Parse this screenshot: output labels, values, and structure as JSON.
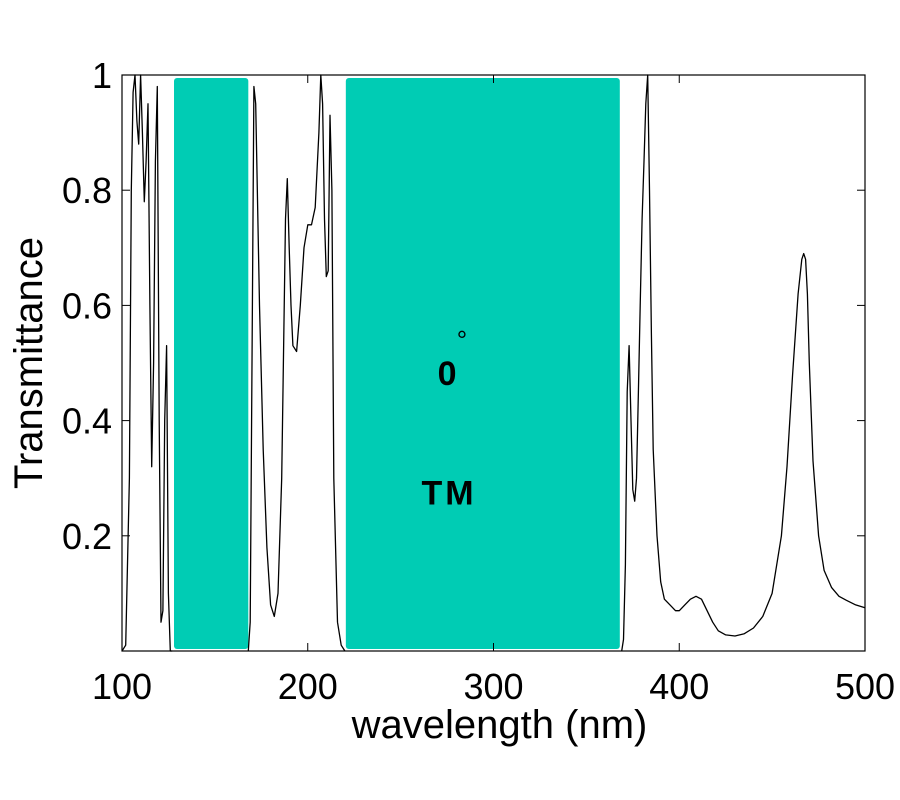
{
  "chart_data": {
    "type": "line",
    "title": "",
    "xlabel": "wavelength (nm)",
    "ylabel": "Transmittance",
    "xlim": [
      100,
      500
    ],
    "ylim": [
      0,
      1
    ],
    "xticks": [
      100,
      200,
      300,
      400,
      500
    ],
    "xtick_labels": [
      "100",
      "200",
      "300",
      "400",
      "500"
    ],
    "yticks": [
      0.2,
      0.4,
      0.6,
      0.8,
      1
    ],
    "ytick_labels": [
      "0.2",
      "0.4",
      "0.6",
      "0.8",
      "1"
    ],
    "grid": false,
    "band_color": "#00CCB4",
    "line_color": "#000000",
    "bands": [
      {
        "name": "band-gap-1",
        "x_start": 128,
        "x_end": 168
      },
      {
        "name": "band-gap-2",
        "x_start": 220.5,
        "x_end": 368
      }
    ],
    "annotations": [
      {
        "name": "angle-label",
        "text": "0",
        "x": 275,
        "y": 0.49
      },
      {
        "name": "degree-symbol",
        "text": "°",
        "x": 283,
        "y": 0.54
      },
      {
        "name": "polarization-label",
        "text": "TM",
        "x": 275,
        "y": 0.28
      }
    ],
    "series": [
      {
        "name": "Transmittance",
        "x": [
          100,
          102,
          104,
          105,
          106,
          107,
          108,
          109,
          110,
          111,
          112,
          113,
          114,
          115,
          116,
          117,
          118,
          119,
          120,
          121,
          122,
          123,
          124,
          125,
          126,
          127,
          168,
          169,
          170,
          171,
          172,
          174,
          176,
          178,
          180,
          182,
          184,
          186,
          188,
          189,
          190,
          191,
          192,
          194,
          196,
          198,
          200,
          202,
          204,
          206,
          207,
          208,
          209,
          210,
          211,
          212,
          213,
          214,
          216,
          218,
          220,
          369,
          370,
          371,
          372,
          373,
          374,
          375,
          376,
          377,
          378,
          379,
          380,
          381,
          382,
          383,
          384,
          385,
          386,
          388,
          390,
          392,
          395,
          398,
          400,
          403,
          406,
          409,
          412,
          415,
          418,
          421,
          425,
          430,
          435,
          440,
          445,
          450,
          455,
          458,
          461,
          464,
          466,
          467,
          468,
          469,
          470,
          472,
          475,
          478,
          482,
          486,
          490,
          495,
          500
        ],
        "y": [
          0.0,
          0.01,
          0.3,
          0.8,
          0.97,
          1.0,
          0.92,
          0.88,
          1.0,
          0.9,
          0.78,
          0.85,
          0.95,
          0.6,
          0.32,
          0.5,
          0.85,
          0.98,
          0.4,
          0.05,
          0.07,
          0.4,
          0.53,
          0.1,
          0.0,
          0.0,
          0.0,
          0.05,
          0.5,
          0.98,
          0.95,
          0.6,
          0.35,
          0.18,
          0.08,
          0.06,
          0.1,
          0.3,
          0.75,
          0.82,
          0.7,
          0.6,
          0.53,
          0.52,
          0.6,
          0.7,
          0.74,
          0.74,
          0.77,
          0.9,
          1.0,
          0.95,
          0.75,
          0.65,
          0.66,
          0.93,
          0.8,
          0.3,
          0.05,
          0.01,
          0.0,
          0.0,
          0.02,
          0.15,
          0.45,
          0.53,
          0.4,
          0.28,
          0.26,
          0.3,
          0.45,
          0.6,
          0.75,
          0.85,
          0.95,
          1.0,
          0.8,
          0.55,
          0.35,
          0.2,
          0.12,
          0.09,
          0.08,
          0.07,
          0.07,
          0.08,
          0.09,
          0.095,
          0.09,
          0.07,
          0.05,
          0.035,
          0.028,
          0.026,
          0.03,
          0.04,
          0.06,
          0.1,
          0.2,
          0.32,
          0.48,
          0.62,
          0.68,
          0.69,
          0.68,
          0.62,
          0.5,
          0.33,
          0.2,
          0.14,
          0.11,
          0.095,
          0.088,
          0.08,
          0.075
        ]
      }
    ]
  }
}
